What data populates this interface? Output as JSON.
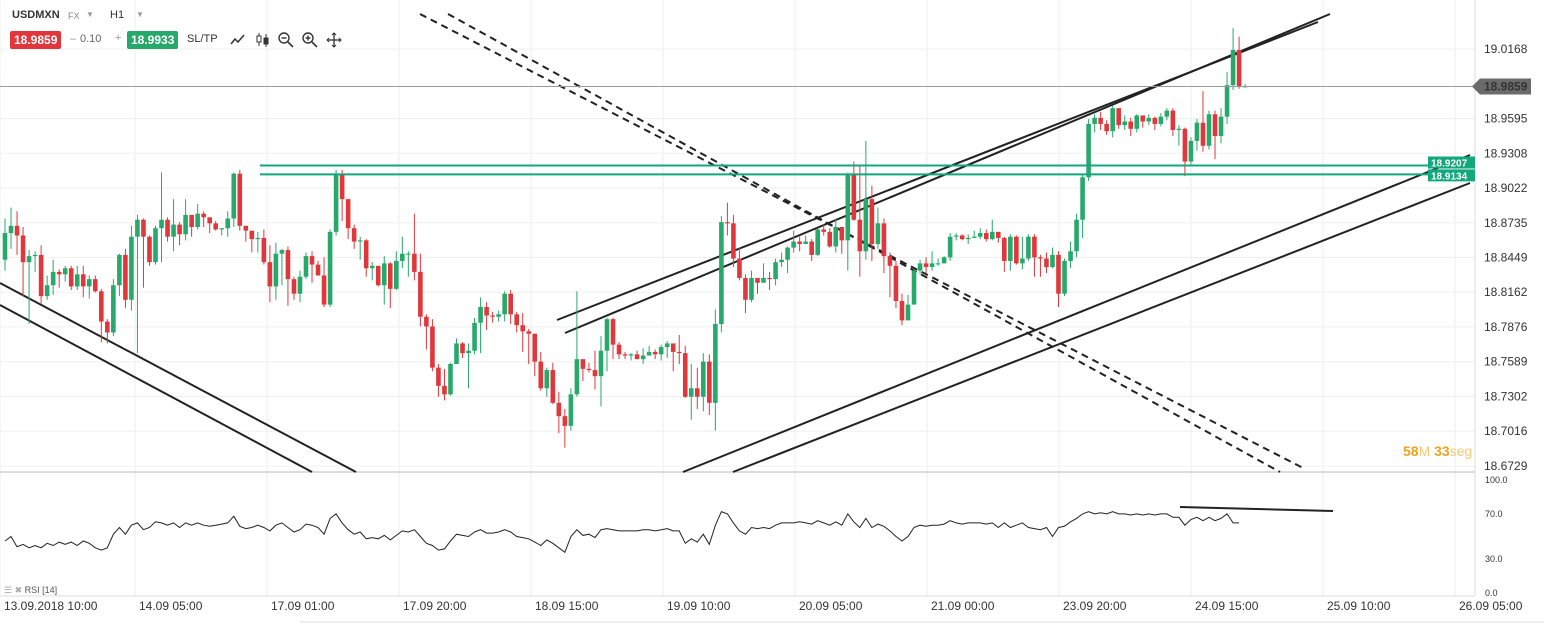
{
  "toolbar": {
    "symbol": "USDMXN",
    "market": "FX",
    "timeframe": "H1",
    "bid": "18.9859",
    "spread": "0.10",
    "ask": "18.9933",
    "sltp_label": "SL/TP",
    "minus_sign": "–",
    "plus_sign": "+"
  },
  "colors": {
    "bull": "#27a96b",
    "bear": "#e0373c",
    "level": "#12a87c",
    "trend": "#222222",
    "countdown": "#f0a21c",
    "price_tag": "#6b6b6b"
  },
  "price_axis": {
    "labels": [
      "19.0168",
      "18.9595",
      "18.9308",
      "18.9022",
      "18.8735",
      "18.8449",
      "18.8162",
      "18.7876",
      "18.7589",
      "18.7302",
      "18.7016",
      "18.6729"
    ],
    "current_price": "18.9859",
    "level_1": "18.9207",
    "level_2": "18.9134"
  },
  "countdown": {
    "minutes": "58",
    "min_unit": "M",
    "seconds": "33",
    "sec_unit": "seg"
  },
  "rsi": {
    "label": "RSI [14]",
    "levels": [
      "100.0",
      "70.0",
      "30.0",
      "0.0"
    ]
  },
  "time_axis": [
    "13.09.2018 10:00",
    "14.09 05:00",
    "17.09 01:00",
    "17.09 20:00",
    "18.09 15:00",
    "19.09 10:00",
    "20.09 05:00",
    "21.09 00:00",
    "23.09 20:00",
    "24.09 15:00",
    "25.09 10:00",
    "26.09 05:00"
  ],
  "chart_data": {
    "type": "candlestick",
    "symbol": "USDMXN",
    "timeframe": "H1",
    "ylim": [
      18.6729,
      19.0168
    ],
    "rsi_ylim": [
      0,
      100
    ],
    "candles": [
      [
        18.843,
        18.865,
        18.877,
        18.834
      ],
      [
        18.865,
        18.871,
        18.886,
        18.852
      ],
      [
        18.871,
        18.863,
        18.883,
        18.847
      ],
      [
        18.863,
        18.841,
        18.87,
        18.813
      ],
      [
        18.841,
        18.846,
        18.851,
        18.79
      ],
      [
        18.846,
        18.847,
        18.85,
        18.833
      ],
      [
        18.847,
        18.813,
        18.855,
        18.807
      ],
      [
        18.813,
        18.822,
        18.83,
        18.81
      ],
      [
        18.822,
        18.833,
        18.843,
        18.814
      ],
      [
        18.833,
        18.831,
        18.835,
        18.82
      ],
      [
        18.831,
        18.836,
        18.838,
        18.825
      ],
      [
        18.836,
        18.821,
        18.838,
        18.818
      ],
      [
        18.821,
        18.831,
        18.838,
        18.818
      ],
      [
        18.831,
        18.821,
        18.838,
        18.812
      ],
      [
        18.821,
        18.827,
        18.83,
        18.811
      ],
      [
        18.827,
        18.817,
        18.83,
        18.816
      ],
      [
        18.817,
        18.792,
        18.819,
        18.775
      ],
      [
        18.792,
        18.783,
        18.794,
        18.774
      ],
      [
        18.783,
        18.822,
        18.827,
        18.78
      ],
      [
        18.822,
        18.847,
        18.848,
        18.813
      ],
      [
        18.847,
        18.81,
        18.852,
        18.803
      ],
      [
        18.81,
        18.862,
        18.871,
        18.801
      ],
      [
        18.862,
        18.876,
        18.88,
        18.766
      ],
      [
        18.876,
        18.862,
        18.877,
        18.82
      ],
      [
        18.862,
        18.841,
        18.863,
        18.838
      ],
      [
        18.841,
        18.869,
        18.871,
        18.839
      ],
      [
        18.869,
        18.876,
        18.915,
        18.841
      ],
      [
        18.876,
        18.862,
        18.878,
        18.858
      ],
      [
        18.862,
        18.872,
        18.893,
        18.85
      ],
      [
        18.872,
        18.864,
        18.874,
        18.855
      ],
      [
        18.864,
        18.88,
        18.893,
        18.859
      ],
      [
        18.88,
        18.87,
        18.876,
        18.862
      ],
      [
        18.87,
        18.881,
        18.889,
        18.868
      ],
      [
        18.881,
        18.878,
        18.883,
        18.87
      ],
      [
        18.878,
        18.873,
        18.874,
        18.865
      ],
      [
        18.873,
        18.868,
        18.875,
        18.867
      ],
      [
        18.868,
        18.869,
        18.869,
        18.863
      ],
      [
        18.869,
        18.877,
        18.883,
        18.862
      ],
      [
        18.877,
        18.914,
        18.915,
        18.87
      ],
      [
        18.914,
        18.871,
        18.917,
        18.867
      ],
      [
        18.871,
        18.867,
        18.871,
        18.858
      ],
      [
        18.867,
        18.86,
        18.866,
        18.849
      ],
      [
        18.86,
        18.861,
        18.866,
        18.849
      ],
      [
        18.861,
        18.841,
        18.868,
        18.839
      ],
      [
        18.841,
        18.821,
        18.855,
        18.808
      ],
      [
        18.821,
        18.848,
        18.857,
        18.81
      ],
      [
        18.848,
        18.851,
        18.852,
        18.822
      ],
      [
        18.851,
        18.827,
        18.854,
        18.805
      ],
      [
        18.827,
        18.815,
        18.829,
        18.81
      ],
      [
        18.815,
        18.829,
        18.834,
        18.808
      ],
      [
        18.829,
        18.846,
        18.849,
        18.827
      ],
      [
        18.846,
        18.839,
        18.85,
        18.824
      ],
      [
        18.839,
        18.83,
        18.842,
        18.83
      ],
      [
        18.83,
        18.806,
        18.845,
        18.804
      ],
      [
        18.806,
        18.866,
        18.868,
        18.804
      ],
      [
        18.866,
        18.913,
        18.917,
        18.863
      ],
      [
        18.913,
        18.893,
        18.917,
        18.875
      ],
      [
        18.893,
        18.869,
        18.89,
        18.86
      ],
      [
        18.869,
        18.858,
        18.872,
        18.852
      ],
      [
        18.858,
        18.859,
        18.862,
        18.843
      ],
      [
        18.859,
        18.836,
        18.86,
        18.829
      ],
      [
        18.836,
        18.838,
        18.841,
        18.826
      ],
      [
        18.838,
        18.822,
        18.838,
        18.821
      ],
      [
        18.822,
        18.84,
        18.846,
        18.806
      ],
      [
        18.84,
        18.819,
        18.841,
        18.803
      ],
      [
        18.819,
        18.842,
        18.85,
        18.818
      ],
      [
        18.842,
        18.848,
        18.862,
        18.836
      ],
      [
        18.848,
        18.848,
        18.85,
        18.829
      ],
      [
        18.848,
        18.833,
        18.881,
        18.826
      ],
      [
        18.833,
        18.796,
        18.848,
        18.788
      ],
      [
        18.796,
        18.788,
        18.798,
        18.769
      ],
      [
        18.788,
        18.754,
        18.794,
        18.751
      ],
      [
        18.754,
        18.739,
        18.757,
        18.73
      ],
      [
        18.739,
        18.732,
        18.753,
        18.727
      ],
      [
        18.732,
        18.757,
        18.758,
        18.731
      ],
      [
        18.757,
        18.774,
        18.778,
        18.764
      ],
      [
        18.774,
        18.766,
        18.775,
        18.762
      ],
      [
        18.766,
        18.768,
        18.774,
        18.737
      ],
      [
        18.768,
        18.791,
        18.795,
        18.765
      ],
      [
        18.791,
        18.804,
        18.812,
        18.766
      ],
      [
        18.804,
        18.797,
        18.808,
        18.785
      ],
      [
        18.797,
        18.796,
        18.8,
        18.791
      ],
      [
        18.796,
        18.798,
        18.801,
        18.792
      ],
      [
        18.798,
        18.815,
        18.817,
        18.792
      ],
      [
        18.815,
        18.798,
        18.818,
        18.79
      ],
      [
        18.798,
        18.789,
        18.8,
        18.783
      ],
      [
        18.789,
        18.784,
        18.799,
        18.767
      ],
      [
        18.784,
        18.782,
        18.786,
        18.757
      ],
      [
        18.782,
        18.759,
        18.782,
        18.747
      ],
      [
        18.759,
        18.737,
        18.767,
        18.735
      ],
      [
        18.737,
        18.752,
        18.754,
        18.73
      ],
      [
        18.752,
        18.725,
        18.758,
        18.724
      ],
      [
        18.725,
        18.714,
        18.734,
        18.7
      ],
      [
        18.714,
        18.706,
        18.72,
        18.688
      ],
      [
        18.706,
        18.732,
        18.737,
        18.702
      ],
      [
        18.732,
        18.761,
        18.817,
        18.73
      ],
      [
        18.761,
        18.753,
        18.759,
        18.743
      ],
      [
        18.753,
        18.752,
        18.758,
        18.75
      ],
      [
        18.752,
        18.747,
        18.768,
        18.736
      ],
      [
        18.747,
        18.768,
        18.78,
        18.722
      ],
      [
        18.768,
        18.794,
        18.795,
        18.751
      ],
      [
        18.794,
        18.773,
        18.795,
        18.761
      ],
      [
        18.773,
        18.765,
        18.775,
        18.761
      ],
      [
        18.765,
        18.764,
        18.767,
        18.761
      ],
      [
        18.764,
        18.765,
        18.766,
        18.76
      ],
      [
        18.765,
        18.761,
        18.768,
        18.761
      ],
      [
        18.761,
        18.764,
        18.77,
        18.757
      ],
      [
        18.764,
        18.767,
        18.772,
        18.765
      ],
      [
        18.767,
        18.765,
        18.769,
        18.761
      ],
      [
        18.765,
        18.771,
        18.773,
        18.76
      ],
      [
        18.771,
        18.774,
        18.776,
        18.762
      ],
      [
        18.774,
        18.767,
        18.772,
        18.751
      ],
      [
        18.767,
        18.766,
        18.781,
        18.757
      ],
      [
        18.766,
        18.73,
        18.772,
        18.729
      ],
      [
        18.73,
        18.737,
        18.757,
        18.711
      ],
      [
        18.737,
        18.73,
        18.754,
        18.72
      ],
      [
        18.73,
        18.759,
        18.766,
        18.718
      ],
      [
        18.759,
        18.725,
        18.765,
        18.715
      ],
      [
        18.725,
        18.79,
        18.802,
        18.702
      ],
      [
        18.79,
        18.874,
        18.879,
        18.783
      ],
      [
        18.874,
        18.873,
        18.89,
        18.863
      ],
      [
        18.873,
        18.844,
        18.88,
        18.837
      ],
      [
        18.844,
        18.828,
        18.853,
        18.826
      ],
      [
        18.828,
        18.81,
        18.831,
        18.799
      ],
      [
        18.81,
        18.828,
        18.834,
        18.808
      ],
      [
        18.828,
        18.824,
        18.827,
        18.815
      ],
      [
        18.824,
        18.828,
        18.84,
        18.825
      ],
      [
        18.828,
        18.827,
        18.833,
        18.818
      ],
      [
        18.827,
        18.841,
        18.844,
        18.822
      ],
      [
        18.841,
        18.843,
        18.849,
        18.837
      ],
      [
        18.843,
        18.853,
        18.854,
        18.832
      ],
      [
        18.853,
        18.858,
        18.867,
        18.849
      ],
      [
        18.858,
        18.856,
        18.862,
        18.85
      ],
      [
        18.856,
        18.858,
        18.863,
        18.856
      ],
      [
        18.858,
        18.847,
        18.86,
        18.842
      ],
      [
        18.847,
        18.868,
        18.869,
        18.846
      ],
      [
        18.868,
        18.866,
        18.872,
        18.863
      ],
      [
        18.866,
        18.854,
        18.869,
        18.853
      ],
      [
        18.854,
        18.87,
        18.877,
        18.849
      ],
      [
        18.87,
        18.859,
        18.87,
        18.848
      ],
      [
        18.859,
        18.914,
        18.915,
        18.834
      ],
      [
        18.914,
        18.876,
        18.924,
        18.875
      ],
      [
        18.876,
        18.85,
        18.921,
        18.829
      ],
      [
        18.85,
        18.893,
        18.941,
        18.843
      ],
      [
        18.893,
        18.856,
        18.904,
        18.842
      ],
      [
        18.856,
        18.873,
        18.886,
        18.852
      ],
      [
        18.873,
        18.846,
        18.877,
        18.832
      ],
      [
        18.846,
        18.838,
        18.849,
        18.812
      ],
      [
        18.838,
        18.809,
        18.842,
        18.803
      ],
      [
        18.809,
        18.793,
        18.815,
        18.789
      ],
      [
        18.793,
        18.806,
        18.814,
        18.802
      ],
      [
        18.806,
        18.834,
        18.835,
        18.818
      ],
      [
        18.834,
        18.84,
        18.843,
        18.831
      ],
      [
        18.84,
        18.837,
        18.845,
        18.832
      ],
      [
        18.837,
        18.84,
        18.85,
        18.834
      ],
      [
        18.84,
        18.84,
        18.844,
        18.838
      ],
      [
        18.84,
        18.845,
        18.846,
        18.84
      ],
      [
        18.845,
        18.862,
        18.865,
        18.842
      ],
      [
        18.862,
        18.863,
        18.865,
        18.859
      ],
      [
        18.863,
        18.86,
        18.864,
        18.859
      ],
      [
        18.86,
        18.861,
        18.864,
        18.856
      ],
      [
        18.861,
        18.862,
        18.867,
        18.861
      ],
      [
        18.862,
        18.865,
        18.869,
        18.86
      ],
      [
        18.865,
        18.86,
        18.868,
        18.858
      ],
      [
        18.86,
        18.866,
        18.876,
        18.859
      ],
      [
        18.866,
        18.861,
        18.866,
        18.857
      ],
      [
        18.861,
        18.842,
        18.862,
        18.833
      ],
      [
        18.842,
        18.862,
        18.864,
        18.834
      ],
      [
        18.862,
        18.84,
        18.863,
        18.839
      ],
      [
        18.84,
        18.844,
        18.862,
        18.835
      ],
      [
        18.844,
        18.862,
        18.864,
        18.842
      ],
      [
        18.862,
        18.845,
        18.864,
        18.829
      ],
      [
        18.845,
        18.844,
        18.847,
        18.829
      ],
      [
        18.844,
        18.837,
        18.849,
        18.832
      ],
      [
        18.837,
        18.847,
        18.853,
        18.836
      ],
      [
        18.847,
        18.815,
        18.85,
        18.804
      ],
      [
        18.815,
        18.842,
        18.844,
        18.813
      ],
      [
        18.842,
        18.85,
        18.858,
        18.836
      ],
      [
        18.85,
        18.876,
        18.881,
        18.845
      ],
      [
        18.876,
        18.911,
        18.913,
        18.861
      ],
      [
        18.911,
        18.955,
        18.959,
        18.908
      ],
      [
        18.955,
        18.96,
        18.963,
        18.948
      ],
      [
        18.96,
        18.955,
        18.965,
        18.95
      ],
      [
        18.955,
        18.949,
        18.958,
        18.946
      ],
      [
        18.949,
        18.968,
        18.97,
        18.944
      ],
      [
        18.968,
        18.954,
        18.968,
        18.951
      ],
      [
        18.954,
        18.957,
        18.962,
        18.95
      ],
      [
        18.957,
        18.951,
        18.96,
        18.945
      ],
      [
        18.951,
        18.962,
        18.963,
        18.948
      ],
      [
        18.962,
        18.957,
        18.962,
        18.952
      ],
      [
        18.957,
        18.96,
        18.963,
        18.954
      ],
      [
        18.96,
        18.955,
        18.961,
        18.95
      ],
      [
        18.955,
        18.961,
        18.964,
        18.953
      ],
      [
        18.961,
        18.966,
        18.968,
        18.958
      ],
      [
        18.966,
        18.95,
        18.968,
        18.945
      ],
      [
        18.95,
        18.951,
        18.954,
        18.937
      ],
      [
        18.951,
        18.924,
        18.952,
        18.912
      ],
      [
        18.924,
        18.941,
        18.944,
        18.921
      ],
      [
        18.941,
        18.956,
        18.959,
        18.933
      ],
      [
        18.956,
        18.937,
        18.982,
        18.932
      ],
      [
        18.937,
        18.963,
        18.966,
        18.934
      ],
      [
        18.963,
        18.945,
        18.966,
        18.926
      ],
      [
        18.945,
        18.961,
        18.968,
        18.939
      ],
      [
        18.961,
        18.987,
        18.998,
        18.955
      ],
      [
        18.987,
        19.016,
        19.034,
        18.983
      ],
      [
        19.016,
        18.986,
        19.027,
        18.984
      ],
      [
        18.986,
        18.986,
        18.988,
        18.985
      ]
    ],
    "rsi_values": [
      46,
      50,
      41,
      43,
      40,
      42,
      40,
      44,
      42,
      45,
      43,
      45,
      42,
      46,
      44,
      40,
      38,
      40,
      52,
      58,
      52,
      60,
      62,
      56,
      58,
      63,
      62,
      60,
      62,
      58,
      62,
      60,
      62,
      60,
      59,
      60,
      61,
      62,
      68,
      59,
      57,
      58,
      60,
      58,
      55,
      60,
      62,
      58,
      54,
      56,
      61,
      60,
      58,
      52,
      66,
      70,
      62,
      56,
      52,
      54,
      48,
      49,
      48,
      51,
      47,
      51,
      55,
      54,
      56,
      50,
      44,
      42,
      38,
      39,
      46,
      52,
      51,
      50,
      54,
      56,
      53,
      53,
      54,
      56,
      54,
      50,
      49,
      48,
      45,
      42,
      47,
      44,
      40,
      36,
      50,
      56,
      51,
      52,
      49,
      56,
      57,
      56,
      55,
      55,
      55,
      55,
      56,
      56,
      55,
      56,
      57,
      55,
      55,
      44,
      48,
      45,
      52,
      43,
      60,
      72,
      70,
      62,
      55,
      52,
      58,
      57,
      58,
      57,
      60,
      62,
      62,
      62,
      63,
      62,
      61,
      64,
      62,
      60,
      63,
      60,
      70,
      63,
      58,
      66,
      58,
      61,
      59,
      55,
      50,
      46,
      50,
      58,
      60,
      59,
      60,
      60,
      61,
      64,
      62,
      61,
      62,
      62,
      62,
      61,
      62,
      58,
      62,
      58,
      60,
      62,
      58,
      57,
      56,
      58,
      50,
      58,
      59,
      63,
      66,
      70,
      72,
      70,
      71,
      70,
      72,
      70,
      70,
      69,
      70,
      69,
      70,
      69,
      70,
      70,
      67,
      67,
      60,
      65,
      67,
      64,
      67,
      64,
      66,
      70,
      62,
      62
    ]
  }
}
